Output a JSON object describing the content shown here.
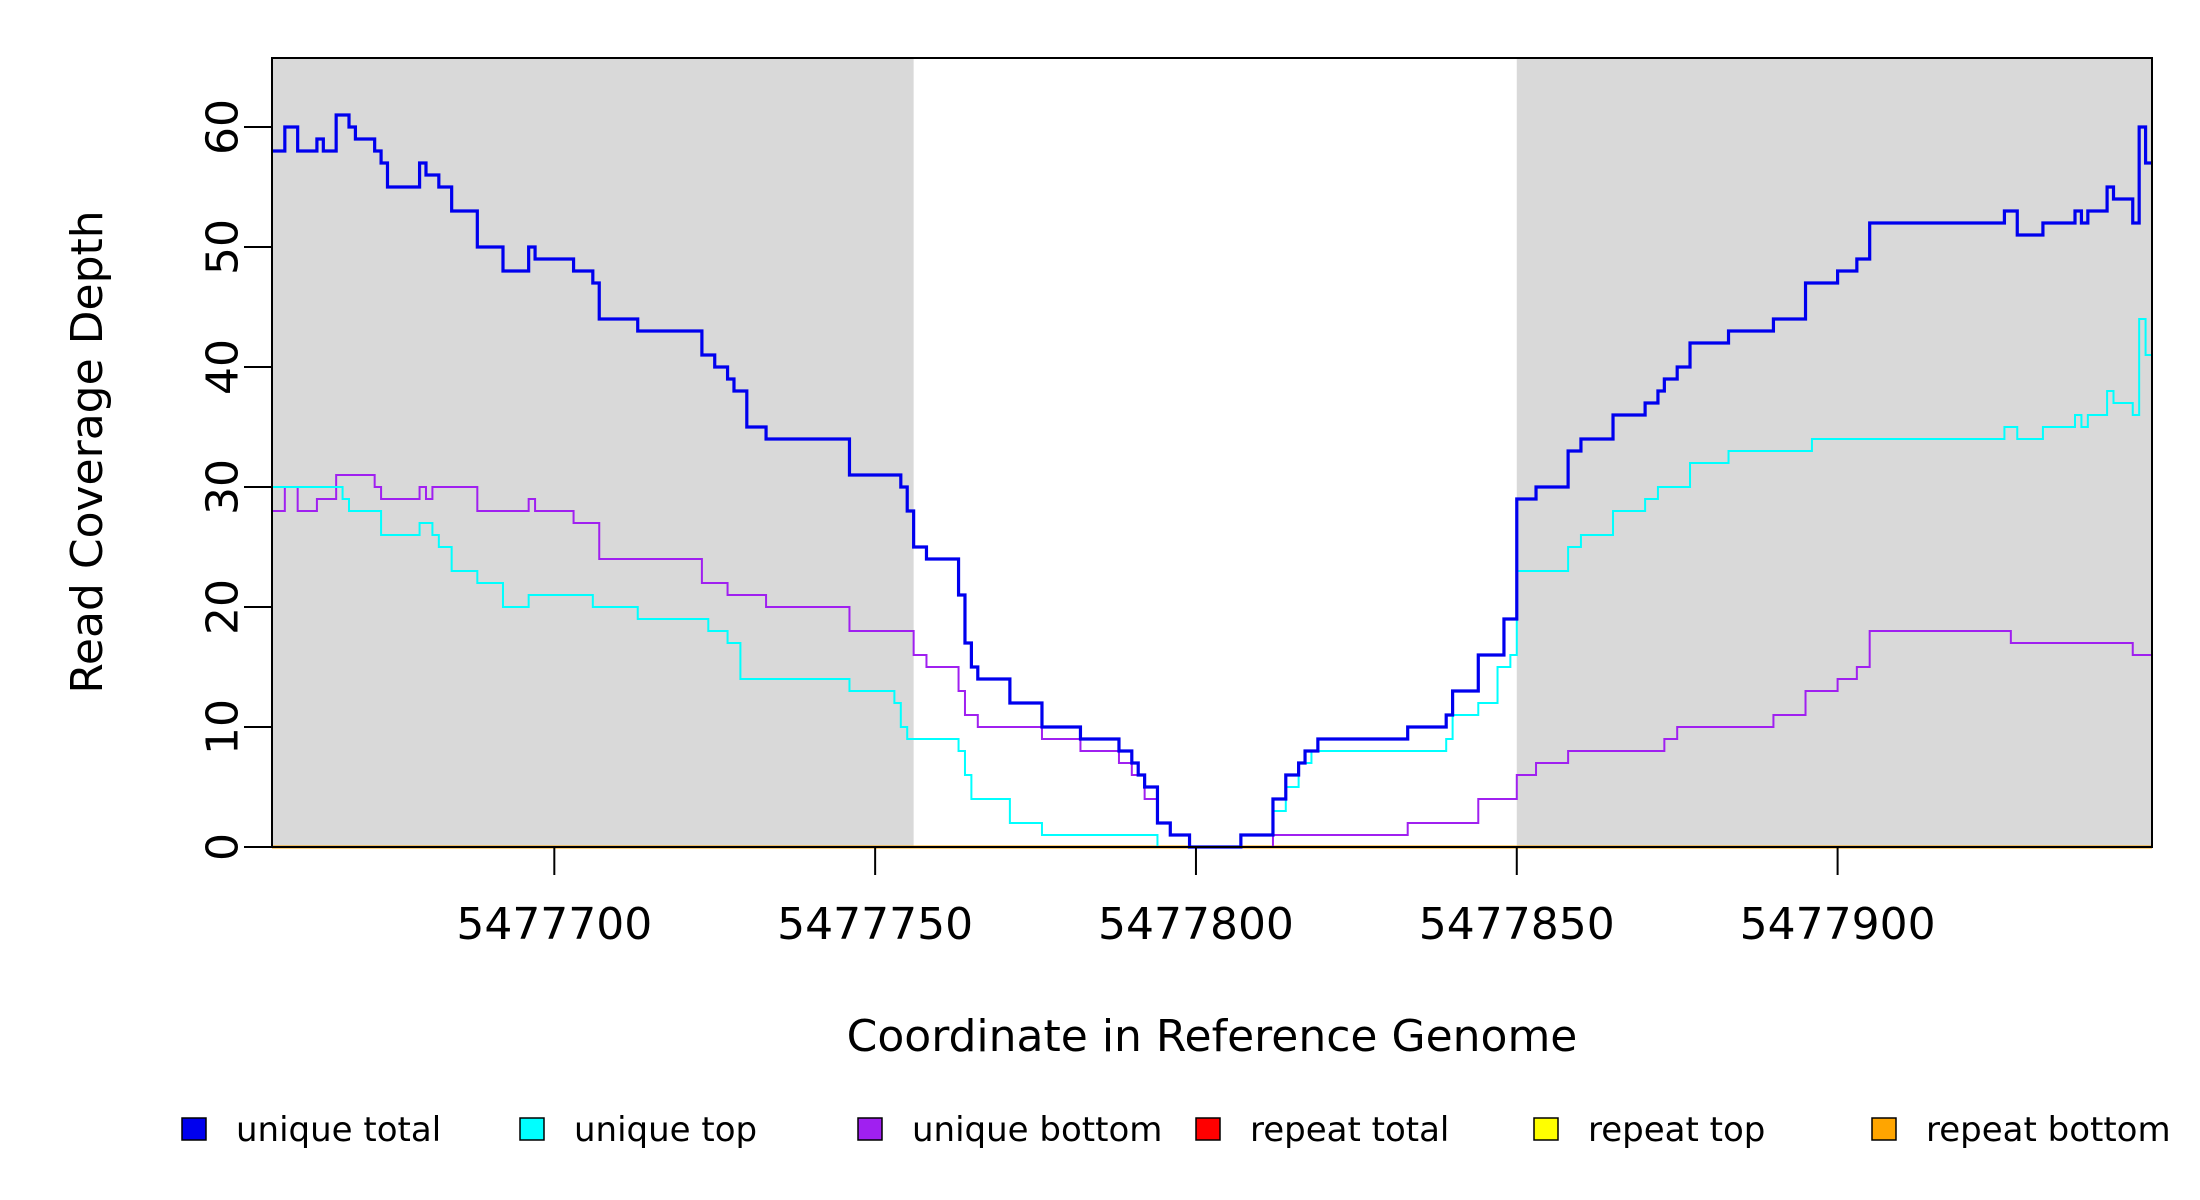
{
  "chart_data": {
    "type": "line",
    "xlabel": "Coordinate in Reference Genome",
    "ylabel": "Read Coverage Depth",
    "xlim": [
      5477656,
      5477949
    ],
    "ylim": [
      0,
      66
    ],
    "x_ticks": [
      5477700,
      5477750,
      5477800,
      5477850,
      5477900
    ],
    "x_tick_labels": [
      "5477700",
      "5477750",
      "5477800",
      "5477850",
      "5477900"
    ],
    "y_ticks": [
      0,
      10,
      20,
      30,
      40,
      50,
      60
    ],
    "y_tick_labels": [
      "0",
      "10",
      "20",
      "30",
      "40",
      "50",
      "60"
    ],
    "grid": false,
    "legend_position": "bottom",
    "shaded_regions": [
      {
        "x0": 5477656,
        "x1": 5477756,
        "color": "#d9d9d9"
      },
      {
        "x0": 5477850,
        "x1": 5477949,
        "color": "#d9d9d9"
      }
    ],
    "series": [
      {
        "name": "unique total",
        "color": "#0000ee",
        "width": 3.2,
        "points": [
          [
            5477656,
            58
          ],
          [
            5477658,
            60
          ],
          [
            5477660,
            58
          ],
          [
            5477663,
            59
          ],
          [
            5477664,
            58
          ],
          [
            5477666,
            61
          ],
          [
            5477668,
            60
          ],
          [
            5477669,
            59
          ],
          [
            5477672,
            58
          ],
          [
            5477673,
            57
          ],
          [
            5477674,
            55
          ],
          [
            5477679,
            57
          ],
          [
            5477680,
            56
          ],
          [
            5477682,
            55
          ],
          [
            5477684,
            53
          ],
          [
            5477688,
            50
          ],
          [
            5477692,
            48
          ],
          [
            5477696,
            50
          ],
          [
            5477697,
            49
          ],
          [
            5477703,
            48
          ],
          [
            5477706,
            47
          ],
          [
            5477707,
            44
          ],
          [
            5477713,
            43
          ],
          [
            5477723,
            41
          ],
          [
            5477725,
            40
          ],
          [
            5477727,
            39
          ],
          [
            5477728,
            38
          ],
          [
            5477730,
            35
          ],
          [
            5477733,
            34
          ],
          [
            5477746,
            31
          ],
          [
            5477754,
            30
          ],
          [
            5477755,
            28
          ],
          [
            5477756,
            25
          ],
          [
            5477758,
            24
          ],
          [
            5477763,
            21
          ],
          [
            5477764,
            17
          ],
          [
            5477765,
            15
          ],
          [
            5477766,
            14
          ],
          [
            5477771,
            12
          ],
          [
            5477776,
            10
          ],
          [
            5477782,
            9
          ],
          [
            5477788,
            8
          ],
          [
            5477790,
            7
          ],
          [
            5477791,
            6
          ],
          [
            5477792,
            5
          ],
          [
            5477794,
            2
          ],
          [
            5477796,
            1
          ],
          [
            5477799,
            0
          ],
          [
            5477807,
            1
          ],
          [
            5477812,
            4
          ],
          [
            5477814,
            6
          ],
          [
            5477816,
            7
          ],
          [
            5477817,
            8
          ],
          [
            5477819,
            9
          ],
          [
            5477833,
            10
          ],
          [
            5477839,
            11
          ],
          [
            5477840,
            13
          ],
          [
            5477844,
            16
          ],
          [
            5477848,
            19
          ],
          [
            5477850,
            29
          ],
          [
            5477853,
            30
          ],
          [
            5477858,
            33
          ],
          [
            5477860,
            34
          ],
          [
            5477865,
            36
          ],
          [
            5477870,
            37
          ],
          [
            5477872,
            38
          ],
          [
            5477873,
            39
          ],
          [
            5477875,
            40
          ],
          [
            5477877,
            42
          ],
          [
            5477883,
            43
          ],
          [
            5477890,
            44
          ],
          [
            5477895,
            47
          ],
          [
            5477900,
            48
          ],
          [
            5477903,
            49
          ],
          [
            5477905,
            52
          ],
          [
            5477926,
            53
          ],
          [
            5477928,
            51
          ],
          [
            5477932,
            52
          ],
          [
            5477937,
            53
          ],
          [
            5477938,
            52
          ],
          [
            5477939,
            53
          ],
          [
            5477942,
            55
          ],
          [
            5477943,
            54
          ],
          [
            5477946,
            52
          ],
          [
            5477947,
            60
          ],
          [
            5477948,
            57
          ],
          [
            5477949,
            57
          ]
        ]
      },
      {
        "name": "unique top",
        "color": "#00ffff",
        "width": 2.0,
        "points": [
          [
            5477656,
            30
          ],
          [
            5477665,
            30
          ],
          [
            5477667,
            29
          ],
          [
            5477668,
            28
          ],
          [
            5477673,
            26
          ],
          [
            5477679,
            27
          ],
          [
            5477681,
            26
          ],
          [
            5477682,
            25
          ],
          [
            5477684,
            23
          ],
          [
            5477688,
            22
          ],
          [
            5477692,
            20
          ],
          [
            5477696,
            21
          ],
          [
            5477706,
            20
          ],
          [
            5477713,
            19
          ],
          [
            5477724,
            18
          ],
          [
            5477727,
            17
          ],
          [
            5477729,
            14
          ],
          [
            5477746,
            13
          ],
          [
            5477753,
            12
          ],
          [
            5477754,
            10
          ],
          [
            5477755,
            9
          ],
          [
            5477763,
            8
          ],
          [
            5477764,
            6
          ],
          [
            5477765,
            4
          ],
          [
            5477771,
            2
          ],
          [
            5477776,
            1
          ],
          [
            5477794,
            0
          ],
          [
            5477807,
            1
          ],
          [
            5477812,
            3
          ],
          [
            5477814,
            5
          ],
          [
            5477816,
            7
          ],
          [
            5477818,
            8
          ],
          [
            5477839,
            9
          ],
          [
            5477840,
            11
          ],
          [
            5477844,
            12
          ],
          [
            5477847,
            15
          ],
          [
            5477849,
            16
          ],
          [
            5477850,
            23
          ],
          [
            5477858,
            25
          ],
          [
            5477860,
            26
          ],
          [
            5477865,
            28
          ],
          [
            5477870,
            29
          ],
          [
            5477872,
            30
          ],
          [
            5477877,
            32
          ],
          [
            5477883,
            33
          ],
          [
            5477896,
            34
          ],
          [
            5477926,
            35
          ],
          [
            5477928,
            34
          ],
          [
            5477932,
            35
          ],
          [
            5477937,
            36
          ],
          [
            5477938,
            35
          ],
          [
            5477939,
            36
          ],
          [
            5477942,
            38
          ],
          [
            5477943,
            37
          ],
          [
            5477946,
            36
          ],
          [
            5477947,
            44
          ],
          [
            5477948,
            41
          ],
          [
            5477949,
            41
          ]
        ]
      },
      {
        "name": "unique bottom",
        "color": "#a020f0",
        "width": 2.0,
        "points": [
          [
            5477656,
            28
          ],
          [
            5477658,
            30
          ],
          [
            5477660,
            28
          ],
          [
            5477663,
            29
          ],
          [
            5477666,
            31
          ],
          [
            5477672,
            30
          ],
          [
            5477673,
            29
          ],
          [
            5477679,
            30
          ],
          [
            5477680,
            29
          ],
          [
            5477681,
            30
          ],
          [
            5477688,
            28
          ],
          [
            5477696,
            29
          ],
          [
            5477697,
            28
          ],
          [
            5477703,
            27
          ],
          [
            5477707,
            24
          ],
          [
            5477723,
            22
          ],
          [
            5477727,
            21
          ],
          [
            5477733,
            20
          ],
          [
            5477746,
            18
          ],
          [
            5477756,
            16
          ],
          [
            5477758,
            15
          ],
          [
            5477763,
            13
          ],
          [
            5477764,
            11
          ],
          [
            5477766,
            10
          ],
          [
            5477776,
            9
          ],
          [
            5477782,
            8
          ],
          [
            5477788,
            7
          ],
          [
            5477790,
            6
          ],
          [
            5477792,
            4
          ],
          [
            5477794,
            2
          ],
          [
            5477796,
            1
          ],
          [
            5477799,
            0
          ],
          [
            5477812,
            1
          ],
          [
            5477833,
            2
          ],
          [
            5477844,
            4
          ],
          [
            5477850,
            6
          ],
          [
            5477853,
            7
          ],
          [
            5477858,
            8
          ],
          [
            5477873,
            9
          ],
          [
            5477875,
            10
          ],
          [
            5477890,
            11
          ],
          [
            5477895,
            13
          ],
          [
            5477900,
            14
          ],
          [
            5477903,
            15
          ],
          [
            5477905,
            18
          ],
          [
            5477927,
            17
          ],
          [
            5477946,
            16
          ],
          [
            5477949,
            16
          ]
        ]
      },
      {
        "name": "repeat total",
        "color": "#ff0000",
        "width": 2.0,
        "points": [
          [
            5477656,
            0
          ],
          [
            5477949,
            0
          ]
        ]
      },
      {
        "name": "repeat top",
        "color": "#ffff00",
        "width": 2.0,
        "points": [
          [
            5477656,
            0
          ],
          [
            5477949,
            0
          ]
        ]
      },
      {
        "name": "repeat bottom",
        "color": "#ffa500",
        "width": 3.0,
        "points": [
          [
            5477656,
            0
          ],
          [
            5477949,
            0
          ]
        ]
      }
    ]
  }
}
